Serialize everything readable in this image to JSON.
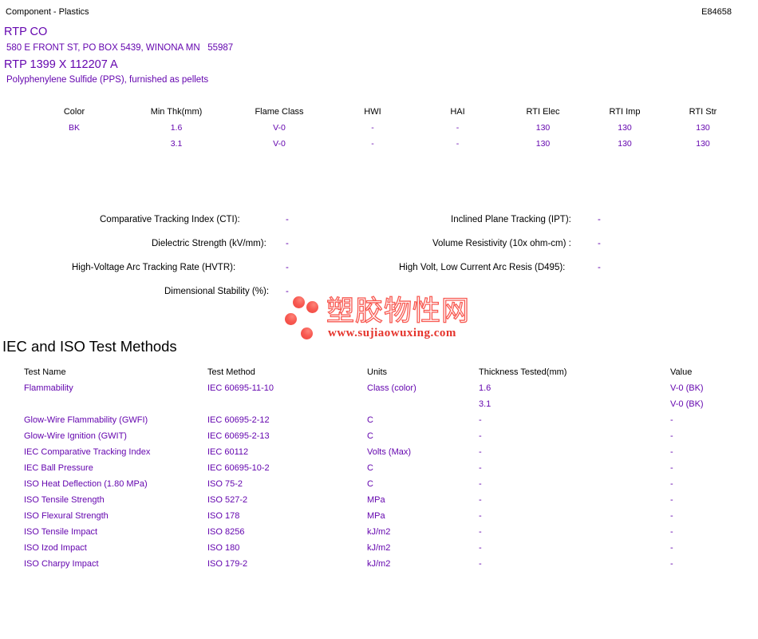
{
  "header": {
    "left_label": "Component - Plastics",
    "file_number": "E84658"
  },
  "company": {
    "name": "RTP CO",
    "address": "580 E FRONT ST, PO BOX 5439, WINONA MN   55987",
    "grade": "RTP 1399 X 112207 A",
    "material": "Polyphenylene Sulfide (PPS), furnished as pellets"
  },
  "ratings_table": {
    "columns": [
      "Color",
      "Min Thk(mm)",
      "Flame Class",
      "HWI",
      "HAI",
      "RTI Elec",
      "RTI Imp",
      "RTI Str"
    ],
    "rows": [
      [
        "BK",
        "1.6",
        "V-0",
        "-",
        "-",
        "130",
        "130",
        "130"
      ],
      [
        "",
        "3.1",
        "V-0",
        "-",
        "-",
        "130",
        "130",
        "130"
      ]
    ]
  },
  "properties": {
    "left": [
      {
        "label": "Comparative Tracking Index (CTI):",
        "value": "-"
      },
      {
        "label": "Dielectric Strength (kV/mm):",
        "value": "-"
      },
      {
        "label": "High-Voltage Arc Tracking Rate (HVTR):",
        "value": "-"
      },
      {
        "label": "Dimensional Stability (%):",
        "value": "-"
      }
    ],
    "right": [
      {
        "label": "Inclined Plane Tracking (IPT):",
        "value": "-"
      },
      {
        "label": "Volume Resistivity (10x ohm-cm) :",
        "value": "-"
      },
      {
        "label": "High Volt, Low Current Arc Resis (D495):",
        "value": "-"
      }
    ]
  },
  "watermark": {
    "cjk_text": "塑胶物性网",
    "url": "www.sujiaowuxing.com"
  },
  "test_methods": {
    "heading": "IEC and ISO Test Methods",
    "columns": [
      "Test Name",
      "Test Method",
      "Units",
      "Thickness Tested(mm)",
      "Value"
    ],
    "rows": [
      [
        "Flammability",
        "IEC 60695-11-10",
        "Class (color)",
        "1.6",
        "V-0 (BK)"
      ],
      [
        "",
        "",
        "",
        "3.1",
        "V-0 (BK)"
      ],
      [
        "Glow-Wire Flammability (GWFI)",
        "IEC 60695-2-12",
        "C",
        "-",
        "-"
      ],
      [
        "Glow-Wire Ignition (GWIT)",
        "IEC 60695-2-13",
        "C",
        "-",
        "-"
      ],
      [
        "IEC Comparative Tracking Index",
        "IEC 60112",
        "Volts (Max)",
        "-",
        "-"
      ],
      [
        "IEC Ball Pressure",
        "IEC 60695-10-2",
        "C",
        "-",
        "-"
      ],
      [
        "ISO Heat Deflection (1.80 MPa)",
        "ISO 75-2",
        "C",
        "-",
        "-"
      ],
      [
        "ISO Tensile Strength",
        "ISO 527-2",
        "MPa",
        "-",
        "-"
      ],
      [
        "ISO Flexural Strength",
        "ISO 178",
        "MPa",
        "-",
        "-"
      ],
      [
        "ISO Tensile Impact",
        "ISO 8256",
        "kJ/m2",
        "-",
        "-"
      ],
      [
        "ISO Izod Impact",
        "ISO 180",
        "kJ/m2",
        "-",
        "-"
      ],
      [
        "ISO Charpy Impact",
        "ISO 179-2",
        "kJ/m2",
        "-",
        "-"
      ]
    ]
  },
  "colors": {
    "accent_purple": "#6507AF",
    "text_black": "#000000",
    "watermark_red": "#F85A52",
    "watermark_url_red": "#E5342C",
    "background": "#FFFFFF"
  }
}
